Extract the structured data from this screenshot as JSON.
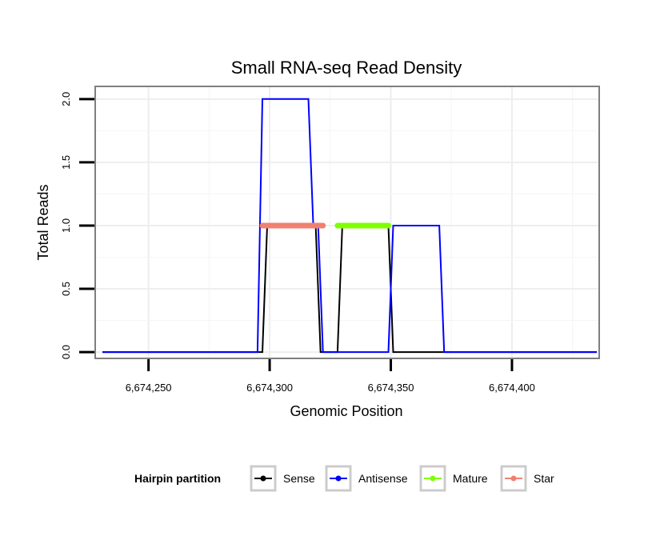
{
  "chart_data": {
    "type": "line",
    "title": "Small RNA-seq Read Density",
    "xlabel": "Genomic Position",
    "ylabel": "Total Reads",
    "xlim": [
      6674228,
      6674436
    ],
    "ylim": [
      -0.05,
      2.1
    ],
    "x_ticks": [
      6674250,
      6674300,
      6674350,
      6674400
    ],
    "x_tick_labels": [
      "6,674,250",
      "6,674,300",
      "6,674,350",
      "6,674,400"
    ],
    "y_ticks": [
      0,
      0.5,
      1,
      1.5,
      2
    ],
    "y_tick_labels": [
      "0.0",
      "0.5",
      "1.0",
      "1.5",
      "2.0"
    ],
    "grid": true,
    "legend": {
      "title": "Hairpin partition",
      "position": "bottom",
      "entries": [
        "Sense",
        "Antisense",
        "Mature",
        "Star"
      ]
    },
    "series": [
      {
        "name": "Sense",
        "color": "#000000",
        "x": [
          6674231,
          6674297,
          6674299,
          6674319,
          6674321,
          6674323,
          6674328,
          6674330,
          6674349,
          6674351,
          6674435
        ],
        "y": [
          0,
          0,
          1,
          1,
          0,
          0,
          0,
          1,
          1,
          0,
          0
        ]
      },
      {
        "name": "Antisense",
        "color": "#0000FF",
        "x": [
          6674231,
          6674295,
          6674297,
          6674316,
          6674318,
          6674320,
          6674322,
          6674349,
          6674351,
          6674370,
          6674372,
          6674435
        ],
        "y": [
          0,
          0,
          2,
          2,
          1,
          1,
          0,
          0,
          1,
          1,
          0,
          0
        ]
      },
      {
        "name": "Mature",
        "color": "#7FFF00",
        "x": [
          6674328,
          6674349
        ],
        "y": [
          1,
          1
        ]
      },
      {
        "name": "Star",
        "color": "#F08070",
        "x": [
          6674297,
          6674322
        ],
        "y": [
          1,
          1
        ]
      }
    ]
  }
}
